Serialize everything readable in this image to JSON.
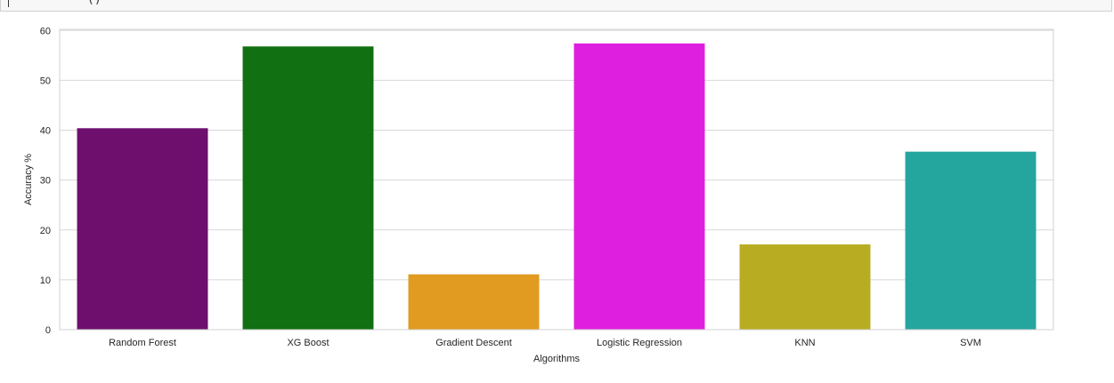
{
  "notebook": {
    "code_tail": "()"
  },
  "chart_data": {
    "type": "bar",
    "categories": [
      "Random Forest",
      "XG Boost",
      "Gradient Descent",
      "Logistic Regression",
      "KNN",
      "SVM"
    ],
    "values": [
      40.4,
      56.8,
      11.1,
      57.4,
      17.1,
      35.7
    ],
    "colors": [
      "#6e0f6e",
      "#117011",
      "#e09b20",
      "#df1fdf",
      "#b8ad22",
      "#24a69f"
    ],
    "title": "",
    "xlabel": "Algorithms",
    "ylabel": "Accuracy %",
    "ylim": [
      0,
      60
    ],
    "yticks": [
      0,
      10,
      20,
      30,
      40,
      50,
      60
    ],
    "grid": true,
    "legend": false
  }
}
